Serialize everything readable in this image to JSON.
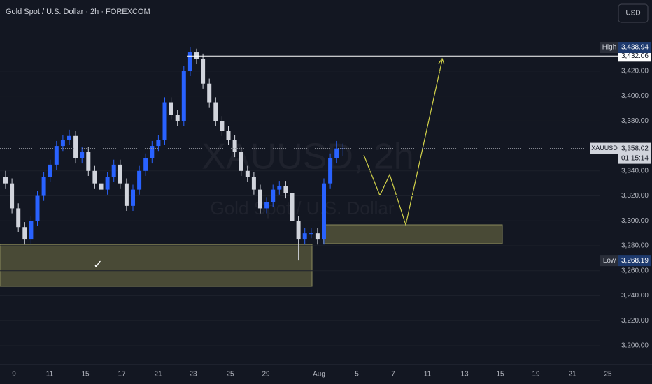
{
  "header": {
    "title": "Gold Spot / U.S. Dollar · 2h · FOREXCOM",
    "currency_button": "USD"
  },
  "watermark": {
    "symbol": "XAUUSD, 2h",
    "name": "Gold Spot / U.S. Dollar"
  },
  "annotations": {
    "checkmark": "✓"
  },
  "chart_data": {
    "type": "candlestick",
    "x_labels": [
      "9",
      "11",
      "15",
      "17",
      "21",
      "23",
      "25",
      "29",
      "Aug",
      "5",
      "7",
      "11",
      "13",
      "15",
      "19",
      "21",
      "25"
    ],
    "open": [
      3335,
      3330,
      3310,
      3295,
      3285,
      3300,
      3320,
      3335,
      3345,
      3360,
      3365,
      3368,
      3350,
      3355,
      3340,
      3330,
      3325,
      3335,
      3345,
      3330,
      3312,
      3325,
      3340,
      3350,
      3360,
      3365,
      3395,
      3385,
      3380,
      3420,
      3435,
      3430,
      3410,
      3395,
      3380,
      3372,
      3365,
      3355,
      3340,
      3335,
      3325,
      3310,
      3315,
      3325,
      3328,
      3322,
      3300,
      3285,
      3290,
      3290,
      3285,
      3330,
      3350,
      3358
    ],
    "high": [
      3340,
      3334,
      3314,
      3299,
      3304,
      3324,
      3339,
      3349,
      3364,
      3369,
      3373,
      3372,
      3359,
      3359,
      3344,
      3334,
      3339,
      3349,
      3349,
      3334,
      3329,
      3344,
      3354,
      3364,
      3369,
      3399,
      3399,
      3389,
      3424,
      3438.94,
      3438,
      3434,
      3414,
      3399,
      3384,
      3376,
      3369,
      3359,
      3344,
      3339,
      3329,
      3319,
      3329,
      3332,
      3332,
      3326,
      3304,
      3294,
      3294,
      3294,
      3334,
      3354,
      3364,
      3362
    ],
    "low": [
      3326,
      3306,
      3291,
      3281,
      3281,
      3296,
      3316,
      3331,
      3341,
      3356,
      3361,
      3346,
      3346,
      3336,
      3326,
      3321,
      3321,
      3331,
      3326,
      3308,
      3308,
      3321,
      3336,
      3346,
      3356,
      3361,
      3381,
      3376,
      3376,
      3416,
      3426,
      3406,
      3391,
      3376,
      3368,
      3361,
      3351,
      3336,
      3331,
      3321,
      3306,
      3306,
      3311,
      3321,
      3318,
      3296,
      3268.19,
      3281,
      3286,
      3281,
      3281,
      3326,
      3346,
      3352
    ],
    "close": [
      3330,
      3310,
      3295,
      3285,
      3300,
      3320,
      3335,
      3345,
      3360,
      3365,
      3368,
      3350,
      3355,
      3340,
      3330,
      3325,
      3335,
      3345,
      3330,
      3312,
      3325,
      3340,
      3350,
      3360,
      3365,
      3395,
      3385,
      3380,
      3420,
      3435,
      3430,
      3410,
      3395,
      3380,
      3372,
      3365,
      3355,
      3340,
      3335,
      3325,
      3310,
      3315,
      3325,
      3328,
      3322,
      3300,
      3285,
      3290,
      3290,
      3285,
      3330,
      3350,
      3358,
      3358.02
    ],
    "up_color": "#2962ff",
    "down_color": "#d1d4dc",
    "ylim": [
      3186,
      3477
    ],
    "yticks": [
      {
        "value": 3200,
        "label": "3,200.00"
      },
      {
        "value": 3220,
        "label": "3,220.00"
      },
      {
        "value": 3240,
        "label": "3,240.00"
      },
      {
        "value": 3260,
        "label": "3,260.00"
      },
      {
        "value": 3280,
        "label": "3,280.00"
      },
      {
        "value": 3300,
        "label": "3,300.00"
      },
      {
        "value": 3320,
        "label": "3,320.00"
      },
      {
        "value": 3340,
        "label": "3,340.00"
      },
      {
        "value": 3380,
        "label": "3,380.00"
      },
      {
        "value": 3400,
        "label": "3,400.00"
      },
      {
        "value": 3420,
        "label": "3,420.00"
      }
    ],
    "grid": true,
    "high_marker": {
      "label": "High",
      "value": 3438.94,
      "value_label": "3,438.94"
    },
    "low_marker": {
      "label": "Low",
      "value": 3268.19,
      "value_label": "3,268.19"
    },
    "level": {
      "value": 3432.06,
      "value_label": "3,432.06"
    },
    "last_price": {
      "symbol": "XAUUSD",
      "value": 3358.02,
      "value_label": "3,358.02",
      "countdown": "01:15:14"
    }
  }
}
